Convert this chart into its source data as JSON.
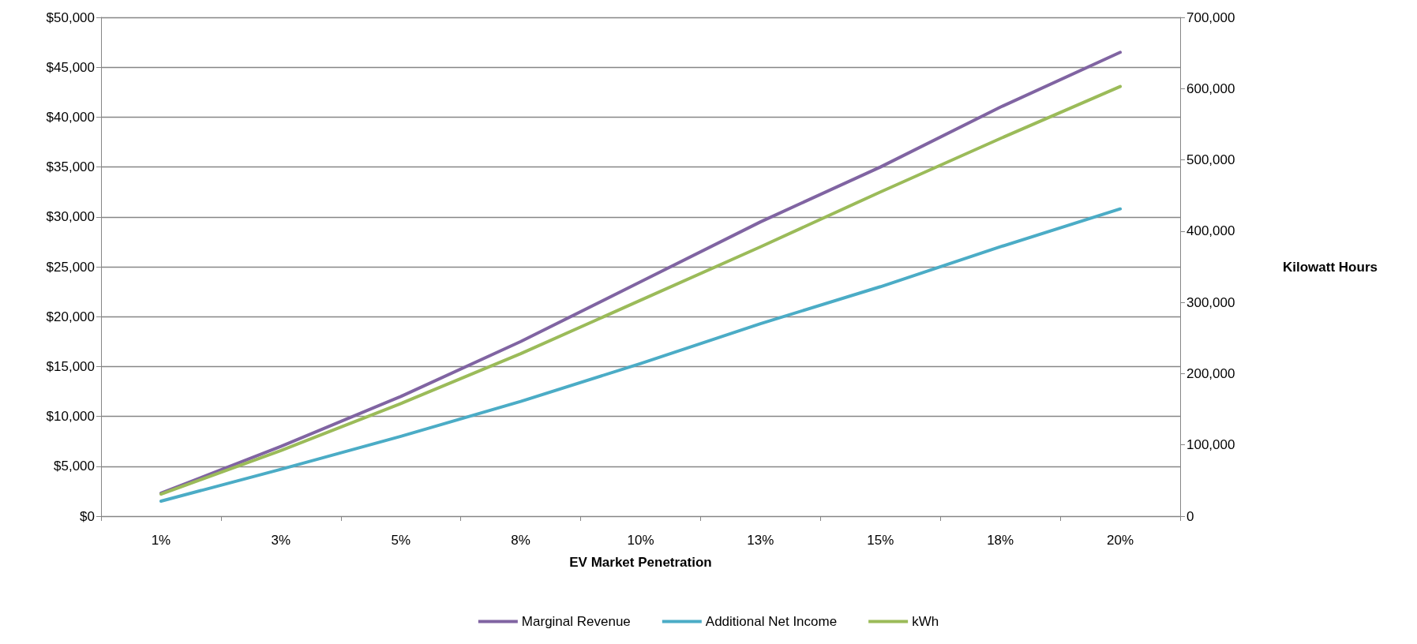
{
  "chart_data": {
    "type": "line",
    "xlabel": "EV Market Penetration",
    "y2label": "Kilowatt Hours",
    "categories": [
      "1%",
      "3%",
      "5%",
      "8%",
      "10%",
      "13%",
      "15%",
      "18%",
      "20%"
    ],
    "series": [
      {
        "name": "Marginal Revenue",
        "color": "#8064a2",
        "values": [
          2300,
          7000,
          12000,
          17500,
          23500,
          29500,
          35000,
          41000,
          46500
        ]
      },
      {
        "name": "Additional Net Income",
        "color": "#4bacc6",
        "values": [
          1500,
          4700,
          8000,
          11500,
          15300,
          19300,
          23000,
          27000,
          30800
        ]
      },
      {
        "name": "kWh",
        "color": "#9bbb59",
        "axis": "y2",
        "values": [
          31000,
          92000,
          158000,
          228000,
          303000,
          378000,
          455000,
          530000,
          603000
        ]
      }
    ],
    "ylim": [
      0,
      50000
    ],
    "yticks": [
      {
        "value": 0,
        "label": "$0"
      },
      {
        "value": 5000,
        "label": "$5,000"
      },
      {
        "value": 10000,
        "label": "$10,000"
      },
      {
        "value": 15000,
        "label": "$15,000"
      },
      {
        "value": 20000,
        "label": "$20,000"
      },
      {
        "value": 25000,
        "label": "$25,000"
      },
      {
        "value": 30000,
        "label": "$30,000"
      },
      {
        "value": 35000,
        "label": "$35,000"
      },
      {
        "value": 40000,
        "label": "$40,000"
      },
      {
        "value": 45000,
        "label": "$45,000"
      },
      {
        "value": 50000,
        "label": "$50,000"
      }
    ],
    "y2lim": [
      0,
      700000
    ],
    "y2ticks": [
      0,
      {
        "value": 100000,
        "label": "100,000"
      },
      {
        "value": 200000,
        "label": "200,000"
      },
      {
        "value": 300000,
        "label": "300,000"
      },
      {
        "value": 400000,
        "label": "400,000"
      },
      {
        "value": 500000,
        "label": "500,000"
      },
      {
        "value": 600000,
        "label": "600,000"
      },
      {
        "value": 700000,
        "label": "700,000"
      }
    ],
    "grid": "y",
    "legend": "bottom",
    "marker": "none",
    "line_style": "solid"
  }
}
